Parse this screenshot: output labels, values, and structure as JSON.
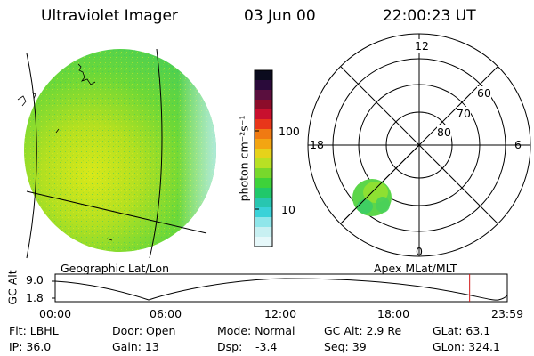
{
  "header": {
    "instrument": "Ultraviolet Imager",
    "date": "03 Jun 00",
    "time": "22:00:23 UT"
  },
  "globe_panel": {
    "label": "Geographic Lat/Lon"
  },
  "polar_panel": {
    "label": "Apex MLat/MLT",
    "mlt_labels": {
      "top": "12",
      "left": "18",
      "right": "6",
      "bottom": "0"
    },
    "lat_labels": [
      "60",
      "70",
      "80"
    ]
  },
  "colorbar": {
    "unit_label": "photon cm⁻²s⁻¹",
    "tick_labels": [
      "100",
      "10"
    ],
    "colors": [
      "#0b0b1e",
      "#2a0a3a",
      "#5a0f3e",
      "#8c0c2a",
      "#c8102e",
      "#e8361a",
      "#f07a12",
      "#f3a512",
      "#e6d21a",
      "#b8e024",
      "#78d82c",
      "#3ed23a",
      "#20c86a",
      "#28c6b0",
      "#3ad2d8",
      "#8fe6ea",
      "#c8f0f2",
      "#e6f8fa"
    ]
  },
  "timeline": {
    "y_axis_label": "GC Alt",
    "y_ticks": [
      "9.0",
      "1.8"
    ],
    "x_ticks": [
      "00:00",
      "06:00",
      "12:00",
      "18:00",
      "23:59"
    ],
    "current_marker_hours": 22.0
  },
  "status": {
    "flt": "Flt: LBHL",
    "ip": "IP: 36.0",
    "door": "Door: Open",
    "gain": "Gain: 13",
    "mode": "Mode: Normal",
    "dsp_label": "Dsp:",
    "dsp_value": "-3.4",
    "gc_alt": "GC Alt: 2.9 Re",
    "seq": "Seq: 39",
    "glat": "GLat: 63.1",
    "glon": "GLon: 324.1"
  }
}
